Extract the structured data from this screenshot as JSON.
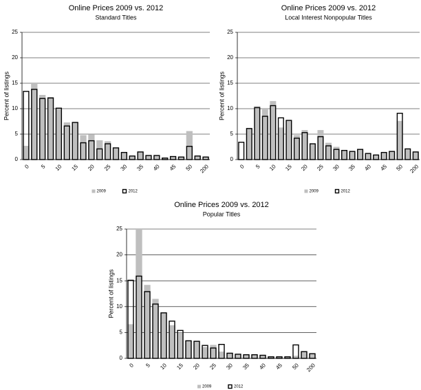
{
  "chart_data": [
    {
      "type": "bar",
      "title": "Online Prices 2009 vs. 2012",
      "subtitle": "Standard Titles",
      "y_label": "Percent of listings",
      "categories": [
        "0",
        null,
        "5",
        null,
        "10",
        null,
        "15",
        null,
        "20",
        null,
        "25",
        null,
        "30",
        null,
        "35",
        null,
        "40",
        null,
        "45",
        null,
        "50",
        null,
        "200"
      ],
      "series": [
        {
          "name": "2009",
          "color": "#bfbfbf",
          "values": [
            2.7,
            15,
            12.7,
            12.3,
            10.1,
            7.3,
            7.3,
            4.8,
            4.9,
            3.8,
            3.6,
            2.3,
            1.4,
            0.7,
            1.5,
            0.8,
            0.8,
            0.3,
            0.6,
            0.5,
            5.6,
            0.7,
            0.5
          ]
        },
        {
          "name": "2012",
          "color": "#000000",
          "values": [
            13.4,
            13.8,
            12.0,
            12.1,
            10.1,
            6.6,
            7.3,
            3.3,
            3.7,
            2.1,
            3.1,
            2.3,
            1.4,
            0.7,
            1.5,
            0.8,
            0.8,
            0.3,
            0.6,
            0.5,
            2.6,
            0.7,
            0.5
          ]
        }
      ],
      "ylim": [
        0,
        25
      ],
      "yticks": [
        0,
        5,
        10,
        15,
        20,
        25
      ],
      "grid": true
    },
    {
      "type": "bar",
      "title": "Online Prices 2009 vs. 2012",
      "subtitle": "Local Interest Nonpopular Titles",
      "y_label": "Percent of listings",
      "categories": [
        "0",
        null,
        "5",
        null,
        "10",
        null,
        "15",
        null,
        "20",
        null,
        "25",
        null,
        "30",
        null,
        "35",
        null,
        "40",
        null,
        "45",
        null,
        "50",
        null,
        "200"
      ],
      "series": [
        {
          "name": "2009",
          "color": "#bfbfbf",
          "values": [
            0,
            6.2,
            10.5,
            10.0,
            11.5,
            6.3,
            7.7,
            4.8,
            5.8,
            3.1,
            5.8,
            3.3,
            2.5,
            1.8,
            1.6,
            2.0,
            1.2,
            0.9,
            1.4,
            1.6,
            7.6,
            2.1,
            1.5
          ]
        },
        {
          "name": "2012",
          "color": "#000000",
          "values": [
            3.4,
            6.1,
            10.2,
            8.5,
            10.6,
            8.2,
            7.7,
            4.2,
            5.3,
            3.1,
            4.5,
            2.7,
            2.0,
            1.8,
            1.6,
            2.0,
            1.2,
            0.9,
            1.4,
            1.6,
            9.1,
            2.1,
            1.5
          ]
        }
      ],
      "ylim": [
        0,
        25
      ],
      "yticks": [
        0,
        5,
        10,
        15,
        20,
        25
      ],
      "grid": true
    },
    {
      "type": "bar",
      "title": "Online Prices 2009 vs. 2012",
      "subtitle": "Popular Titles",
      "y_label": "Percent of listings",
      "categories": [
        "0",
        null,
        "5",
        null,
        "10",
        null,
        "15",
        null,
        "20",
        null,
        "25",
        null,
        "30",
        null,
        "35",
        null,
        "40",
        null,
        "45",
        null,
        "50",
        null,
        "200"
      ],
      "series": [
        {
          "name": "2009",
          "color": "#bfbfbf",
          "values": [
            6.6,
            25,
            14.2,
            11.5,
            8.8,
            6.4,
            5.0,
            3.4,
            3.3,
            2.2,
            2.6,
            1.3,
            1.0,
            0.8,
            0.7,
            0.7,
            0.6,
            0.3,
            0.3,
            0.3,
            0.5,
            1.3,
            0.9
          ]
        },
        {
          "name": "2012",
          "color": "#000000",
          "values": [
            15.1,
            15.9,
            12.9,
            10.5,
            8.8,
            7.2,
            5.4,
            3.4,
            3.3,
            2.5,
            2.0,
            2.7,
            1.0,
            0.8,
            0.7,
            0.7,
            0.6,
            0.3,
            0.3,
            0.3,
            2.6,
            1.3,
            0.9
          ]
        }
      ],
      "ylim": [
        0,
        25
      ],
      "yticks": [
        0,
        5,
        10,
        15,
        20,
        25
      ],
      "grid": true
    }
  ]
}
